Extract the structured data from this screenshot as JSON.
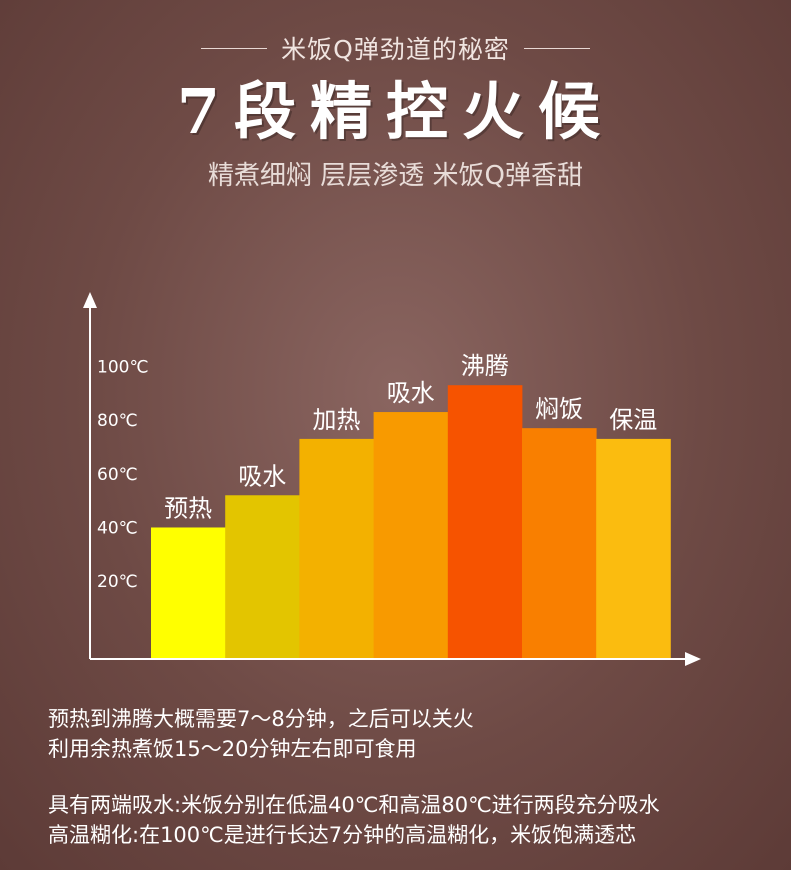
{
  "header": {
    "eyebrow": "米饭Q弹劲道的秘密",
    "title": "7段精控火候",
    "subtitle": "精煮细焖 层层渗透 米饭Q弹香甜"
  },
  "chart_data": {
    "type": "bar",
    "categories": [
      "预热",
      "吸水",
      "加热",
      "吸水",
      "沸腾",
      "焖饭",
      "保温"
    ],
    "values": [
      40,
      52,
      73,
      83,
      93,
      77,
      73
    ],
    "colors": [
      "#ffff00",
      "#e3c500",
      "#f3b100",
      "#f89a00",
      "#f65300",
      "#f97f00",
      "#fbbc0f"
    ],
    "ytick_labels": [
      "20℃",
      "40℃",
      "60℃",
      "80℃",
      "100℃"
    ],
    "yticks": [
      20,
      40,
      60,
      80,
      100
    ],
    "ylim": [
      -9,
      124
    ],
    "xlabel": "",
    "ylabel": ""
  },
  "notes": {
    "line1": "预热到沸腾大概需要7～8分钟，之后可以关火",
    "line2": "利用余热煮饭15～20分钟左右即可食用",
    "line3": "具有两端吸水:米饭分别在低温40℃和高温80℃进行两段充分吸水",
    "line4": "高温糊化:在100℃是进行长达7分钟的高温糊化，米饭饱满透芯"
  }
}
